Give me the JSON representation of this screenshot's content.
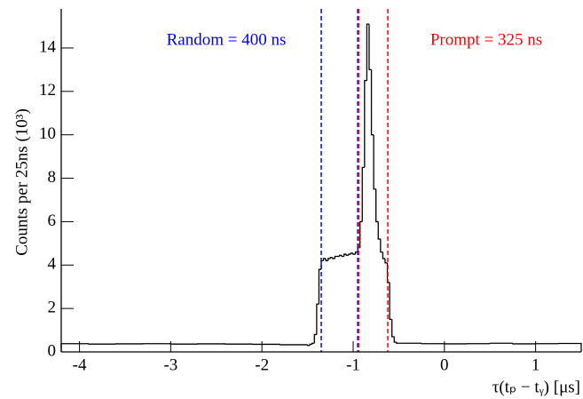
{
  "chart_data": {
    "type": "histogram",
    "xlabel": "τ(tₚ − tᵧ) [μs]",
    "ylabel": "Counts per 25ns (10³)",
    "color": "#000000",
    "bins": [
      -4.2,
      -3.9,
      -3.6,
      -3.3,
      -3.0,
      -2.7,
      -2.4,
      -2.1,
      -1.8,
      -1.5,
      -1.475,
      -1.45,
      -1.425,
      -1.4,
      -1.375,
      -1.35,
      -1.325,
      -1.3,
      -1.275,
      -1.25,
      -1.225,
      -1.2,
      -1.175,
      -1.15,
      -1.125,
      -1.1,
      -1.075,
      -1.05,
      -1.025,
      -1.0,
      -0.975,
      -0.95,
      -0.925,
      -0.9,
      -0.875,
      -0.85,
      -0.825,
      -0.8,
      -0.775,
      -0.75,
      -0.725,
      -0.7,
      -0.675,
      -0.65,
      -0.625,
      -0.6,
      -0.575,
      -0.55,
      -0.525,
      -0.5,
      -0.25,
      0,
      0.25,
      0.5,
      0.75,
      1.0,
      1.25,
      1.5
    ],
    "counts": [
      0.38,
      0.36,
      0.37,
      0.38,
      0.36,
      0.37,
      0.36,
      0.35,
      0.33,
      0.3,
      0.35,
      0.4,
      0.8,
      2.2,
      3.8,
      4.2,
      4.3,
      4.2,
      4.3,
      4.35,
      4.3,
      4.4,
      4.4,
      4.45,
      4.4,
      4.5,
      4.45,
      4.5,
      4.55,
      4.5,
      4.6,
      4.8,
      6.0,
      8.5,
      12.5,
      15.1,
      13.0,
      10.0,
      7.5,
      6.0,
      5.2,
      4.6,
      4.3,
      4.1,
      3.2,
      1.5,
      0.7,
      0.45,
      0.4,
      0.4,
      0.38,
      0.37,
      0.38,
      0.4,
      0.37,
      0.38,
      0.39
    ],
    "vlines": [
      {
        "x": -1.35,
        "color": "#0000ff"
      },
      {
        "x": -0.95,
        "color": "#0000ff"
      },
      {
        "x": -0.94,
        "color": "#ff0000"
      },
      {
        "x": -0.62,
        "color": "#ff0000"
      }
    ],
    "annotations": [
      {
        "text": "Random = 400 ns",
        "color": "#0000ff"
      },
      {
        "text": "Prompt = 325 ns",
        "color": "#ff0000"
      }
    ],
    "xlim": [
      -4.2,
      1.5
    ],
    "ylim": [
      0,
      15.8
    ],
    "xticks": [
      -4,
      -3,
      -2,
      -1,
      0,
      1
    ],
    "yticks": [
      0,
      2,
      4,
      6,
      8,
      10,
      12,
      14
    ]
  }
}
